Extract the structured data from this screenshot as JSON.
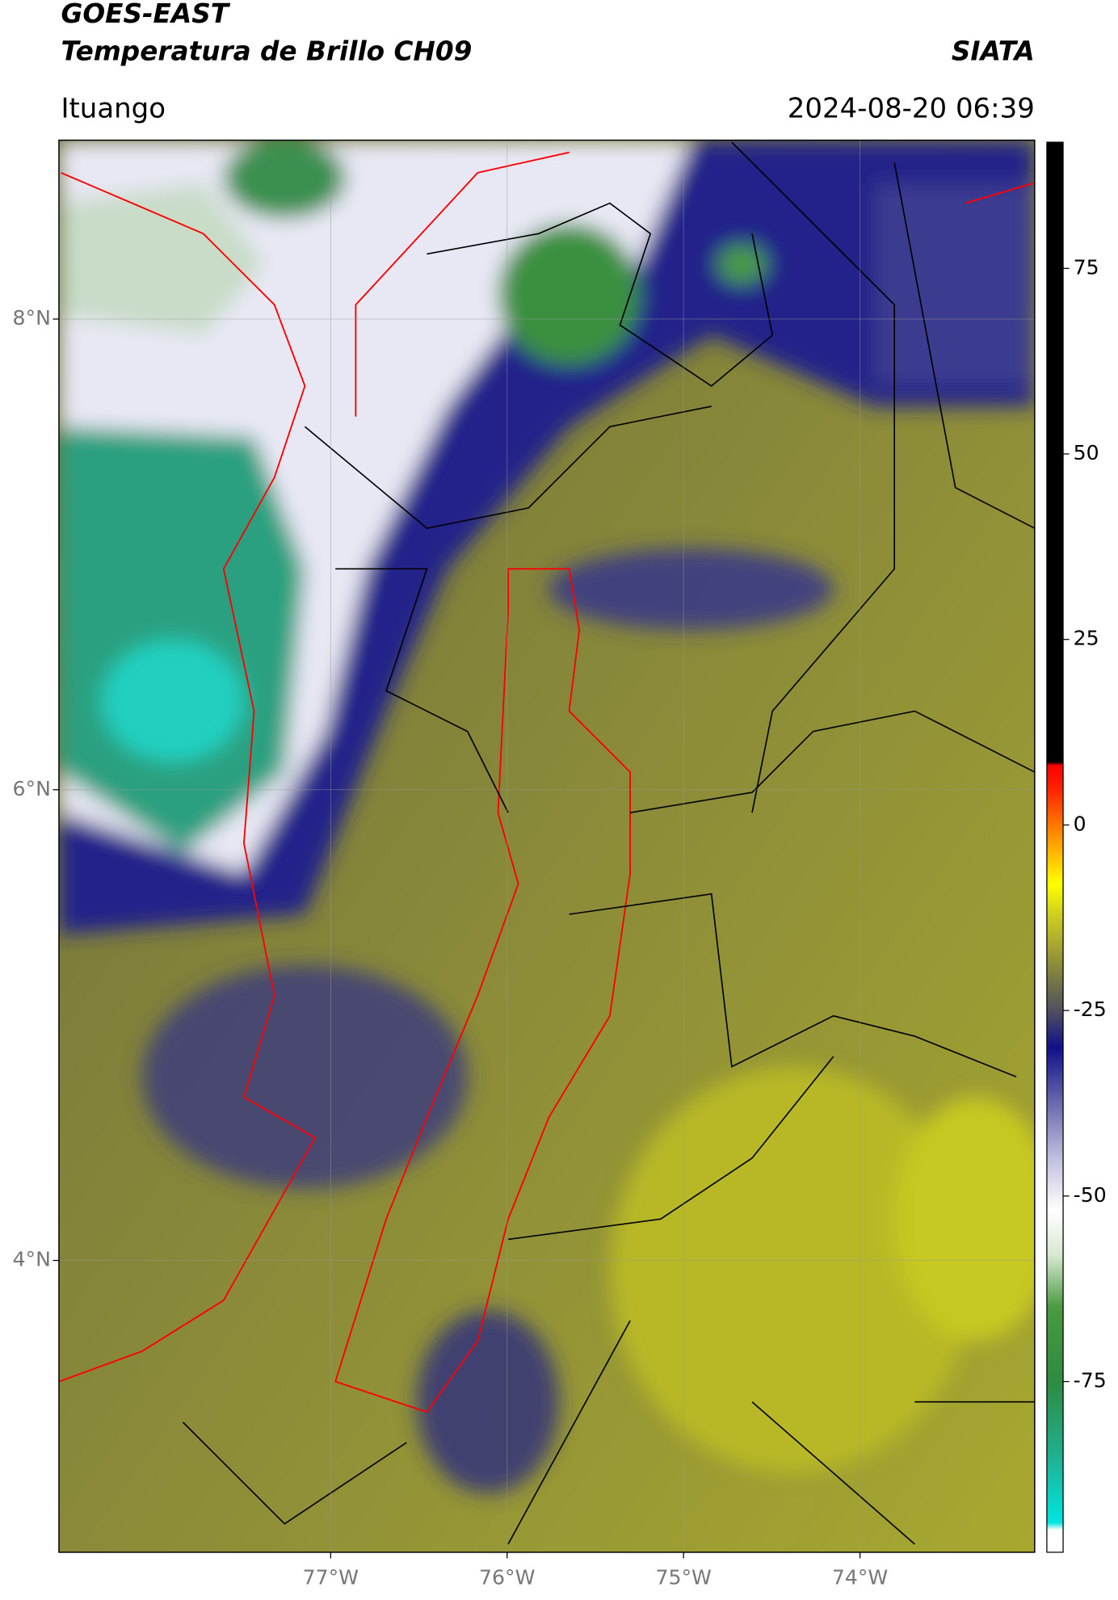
{
  "header": {
    "satellite": "GOES-EAST",
    "product": "Temperatura de Brillo CH09",
    "source": "SIATA",
    "region": "Ituango",
    "datetime": "2024-08-20 06:39"
  },
  "map": {
    "xlim": [
      -78.54,
      -73.01
    ],
    "ylim": [
      2.76,
      8.76
    ],
    "xticks": [
      {
        "value": -77,
        "label": "77°W"
      },
      {
        "value": -76,
        "label": "76°W"
      },
      {
        "value": -75,
        "label": "75°W"
      },
      {
        "value": -74,
        "label": "74°W"
      }
    ],
    "yticks": [
      {
        "value": 8,
        "label": "8°N"
      },
      {
        "value": 6,
        "label": "6°N"
      },
      {
        "value": 4,
        "label": "4°N"
      }
    ],
    "grid": true
  },
  "colorbar": {
    "lim": [
      -98,
      92
    ],
    "ticks": [
      75,
      50,
      25,
      0,
      -25,
      -50,
      -75
    ],
    "colormap": [
      {
        "value": -98,
        "color": "#ffffff"
      },
      {
        "value": -95,
        "color": "#ffffff"
      },
      {
        "value": -94,
        "color": "#00e5e0"
      },
      {
        "value": -85,
        "color": "#20b090"
      },
      {
        "value": -75,
        "color": "#2e8b40"
      },
      {
        "value": -65,
        "color": "#4a9a40"
      },
      {
        "value": -58,
        "color": "#d8e8d0"
      },
      {
        "value": -52,
        "color": "#ffffff"
      },
      {
        "value": -45,
        "color": "#c0c0e0"
      },
      {
        "value": -38,
        "color": "#7070b0"
      },
      {
        "value": -30,
        "color": "#10108a"
      },
      {
        "value": -25,
        "color": "#505060"
      },
      {
        "value": -20,
        "color": "#808040"
      },
      {
        "value": -12,
        "color": "#d0d020"
      },
      {
        "value": -8,
        "color": "#ffff00"
      },
      {
        "value": -2,
        "color": "#ff9900"
      },
      {
        "value": 5,
        "color": "#ff2000"
      },
      {
        "value": 8,
        "color": "#ff0000"
      },
      {
        "value": 8.5,
        "color": "#000000"
      },
      {
        "value": 92,
        "color": "#000000"
      }
    ]
  }
}
